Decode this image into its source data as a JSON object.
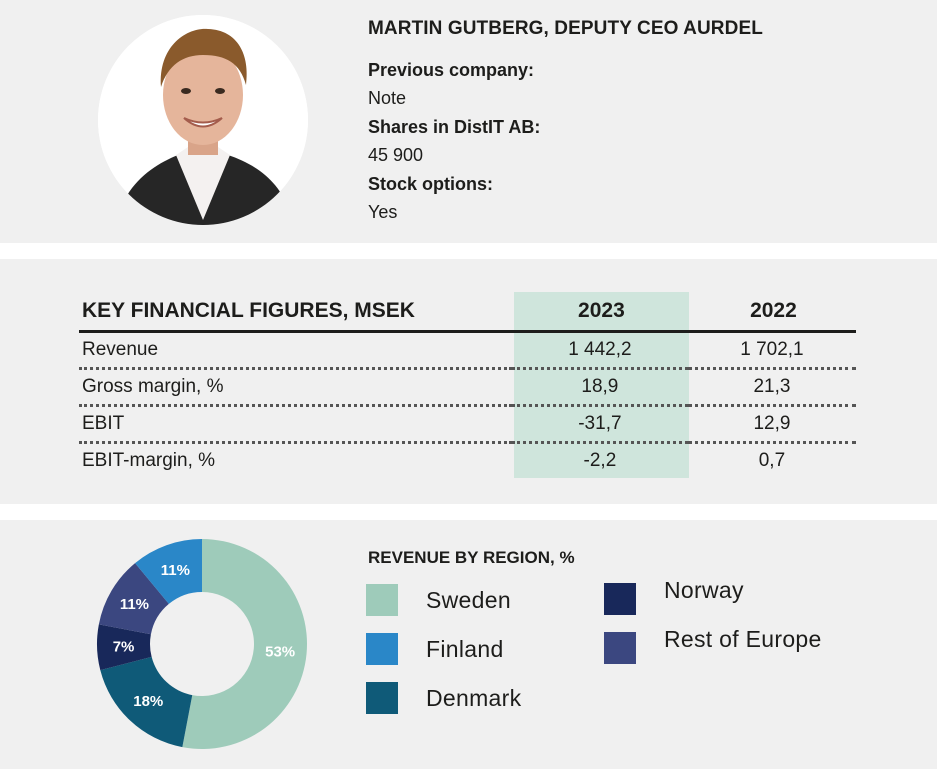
{
  "profile": {
    "name": "MARTIN GUTBERG, DEPUTY CEO AURDEL",
    "fields": [
      {
        "label": "Previous company:",
        "value": "Note"
      },
      {
        "label": "Shares in DistIT AB:",
        "value": "45 900"
      },
      {
        "label": "Stock options:",
        "value": "Yes"
      }
    ]
  },
  "figures": {
    "title": "KEY FINANCIAL FIGURES, MSEK",
    "years": [
      "2023",
      "2022"
    ],
    "rows": [
      {
        "label": "Revenue",
        "v2023": "1 442,2",
        "v2022": "1 702,1"
      },
      {
        "label": "Gross margin, %",
        "v2023": "18,9",
        "v2022": "21,3"
      },
      {
        "label": "EBIT",
        "v2023": "-31,7",
        "v2022": "12,9"
      },
      {
        "label": "EBIT-margin, %",
        "v2023": "-2,2",
        "v2022": "0,7"
      }
    ],
    "highlight_color": "#cfe5dc"
  },
  "chart_data": {
    "type": "pie",
    "title": "REVENUE BY REGION, %",
    "categories": [
      "Sweden",
      "Denmark",
      "Norway",
      "Rest of Europe",
      "Finland"
    ],
    "values": [
      53,
      18,
      7,
      11,
      11
    ],
    "value_labels": [
      "53%",
      "18%",
      "7%",
      "11%",
      "11%"
    ],
    "colors": [
      "#9ecbba",
      "#0f5a78",
      "#18285a",
      "#3b4780",
      "#2a87c8"
    ],
    "legend": [
      {
        "label": "Sweden",
        "color": "#9ecbba"
      },
      {
        "label": "Finland",
        "color": "#2a87c8"
      },
      {
        "label": "Denmark",
        "color": "#0f5a78"
      },
      {
        "label": "Norway",
        "color": "#18285a"
      },
      {
        "label": "Rest of Europe",
        "color": "#3b4780"
      }
    ],
    "legend_placement": "right"
  }
}
